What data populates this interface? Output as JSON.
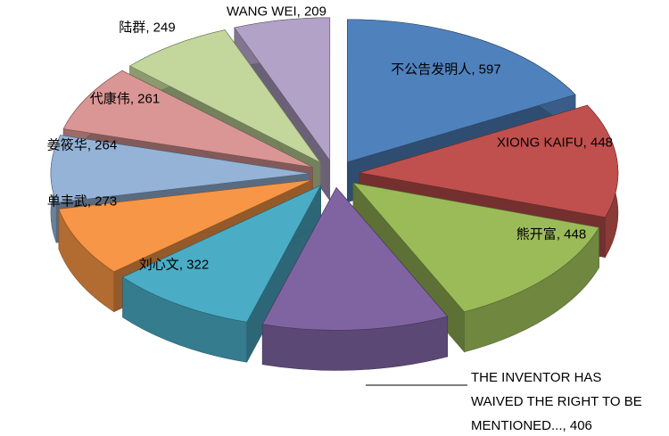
{
  "chart_data": {
    "type": "pie",
    "categories": [
      "不公告发明人",
      "XIONG KAIFU",
      "熊开富",
      "THE INVENTOR HAS WAIVED THE RIGHT TO BE MENTIONED...",
      "刘心文",
      "单丰武",
      "姜筱华",
      "代康伟",
      "陆群",
      "WANG WEI"
    ],
    "values": [
      597,
      448,
      448,
      406,
      322,
      273,
      264,
      261,
      249,
      209
    ],
    "colors": [
      "#4f81bd",
      "#c0504d",
      "#9bbb59",
      "#8064a2",
      "#4bacc6",
      "#f79646",
      "#95b3d7",
      "#d99694",
      "#c3d69b",
      "#b3a2c7"
    ]
  }
}
